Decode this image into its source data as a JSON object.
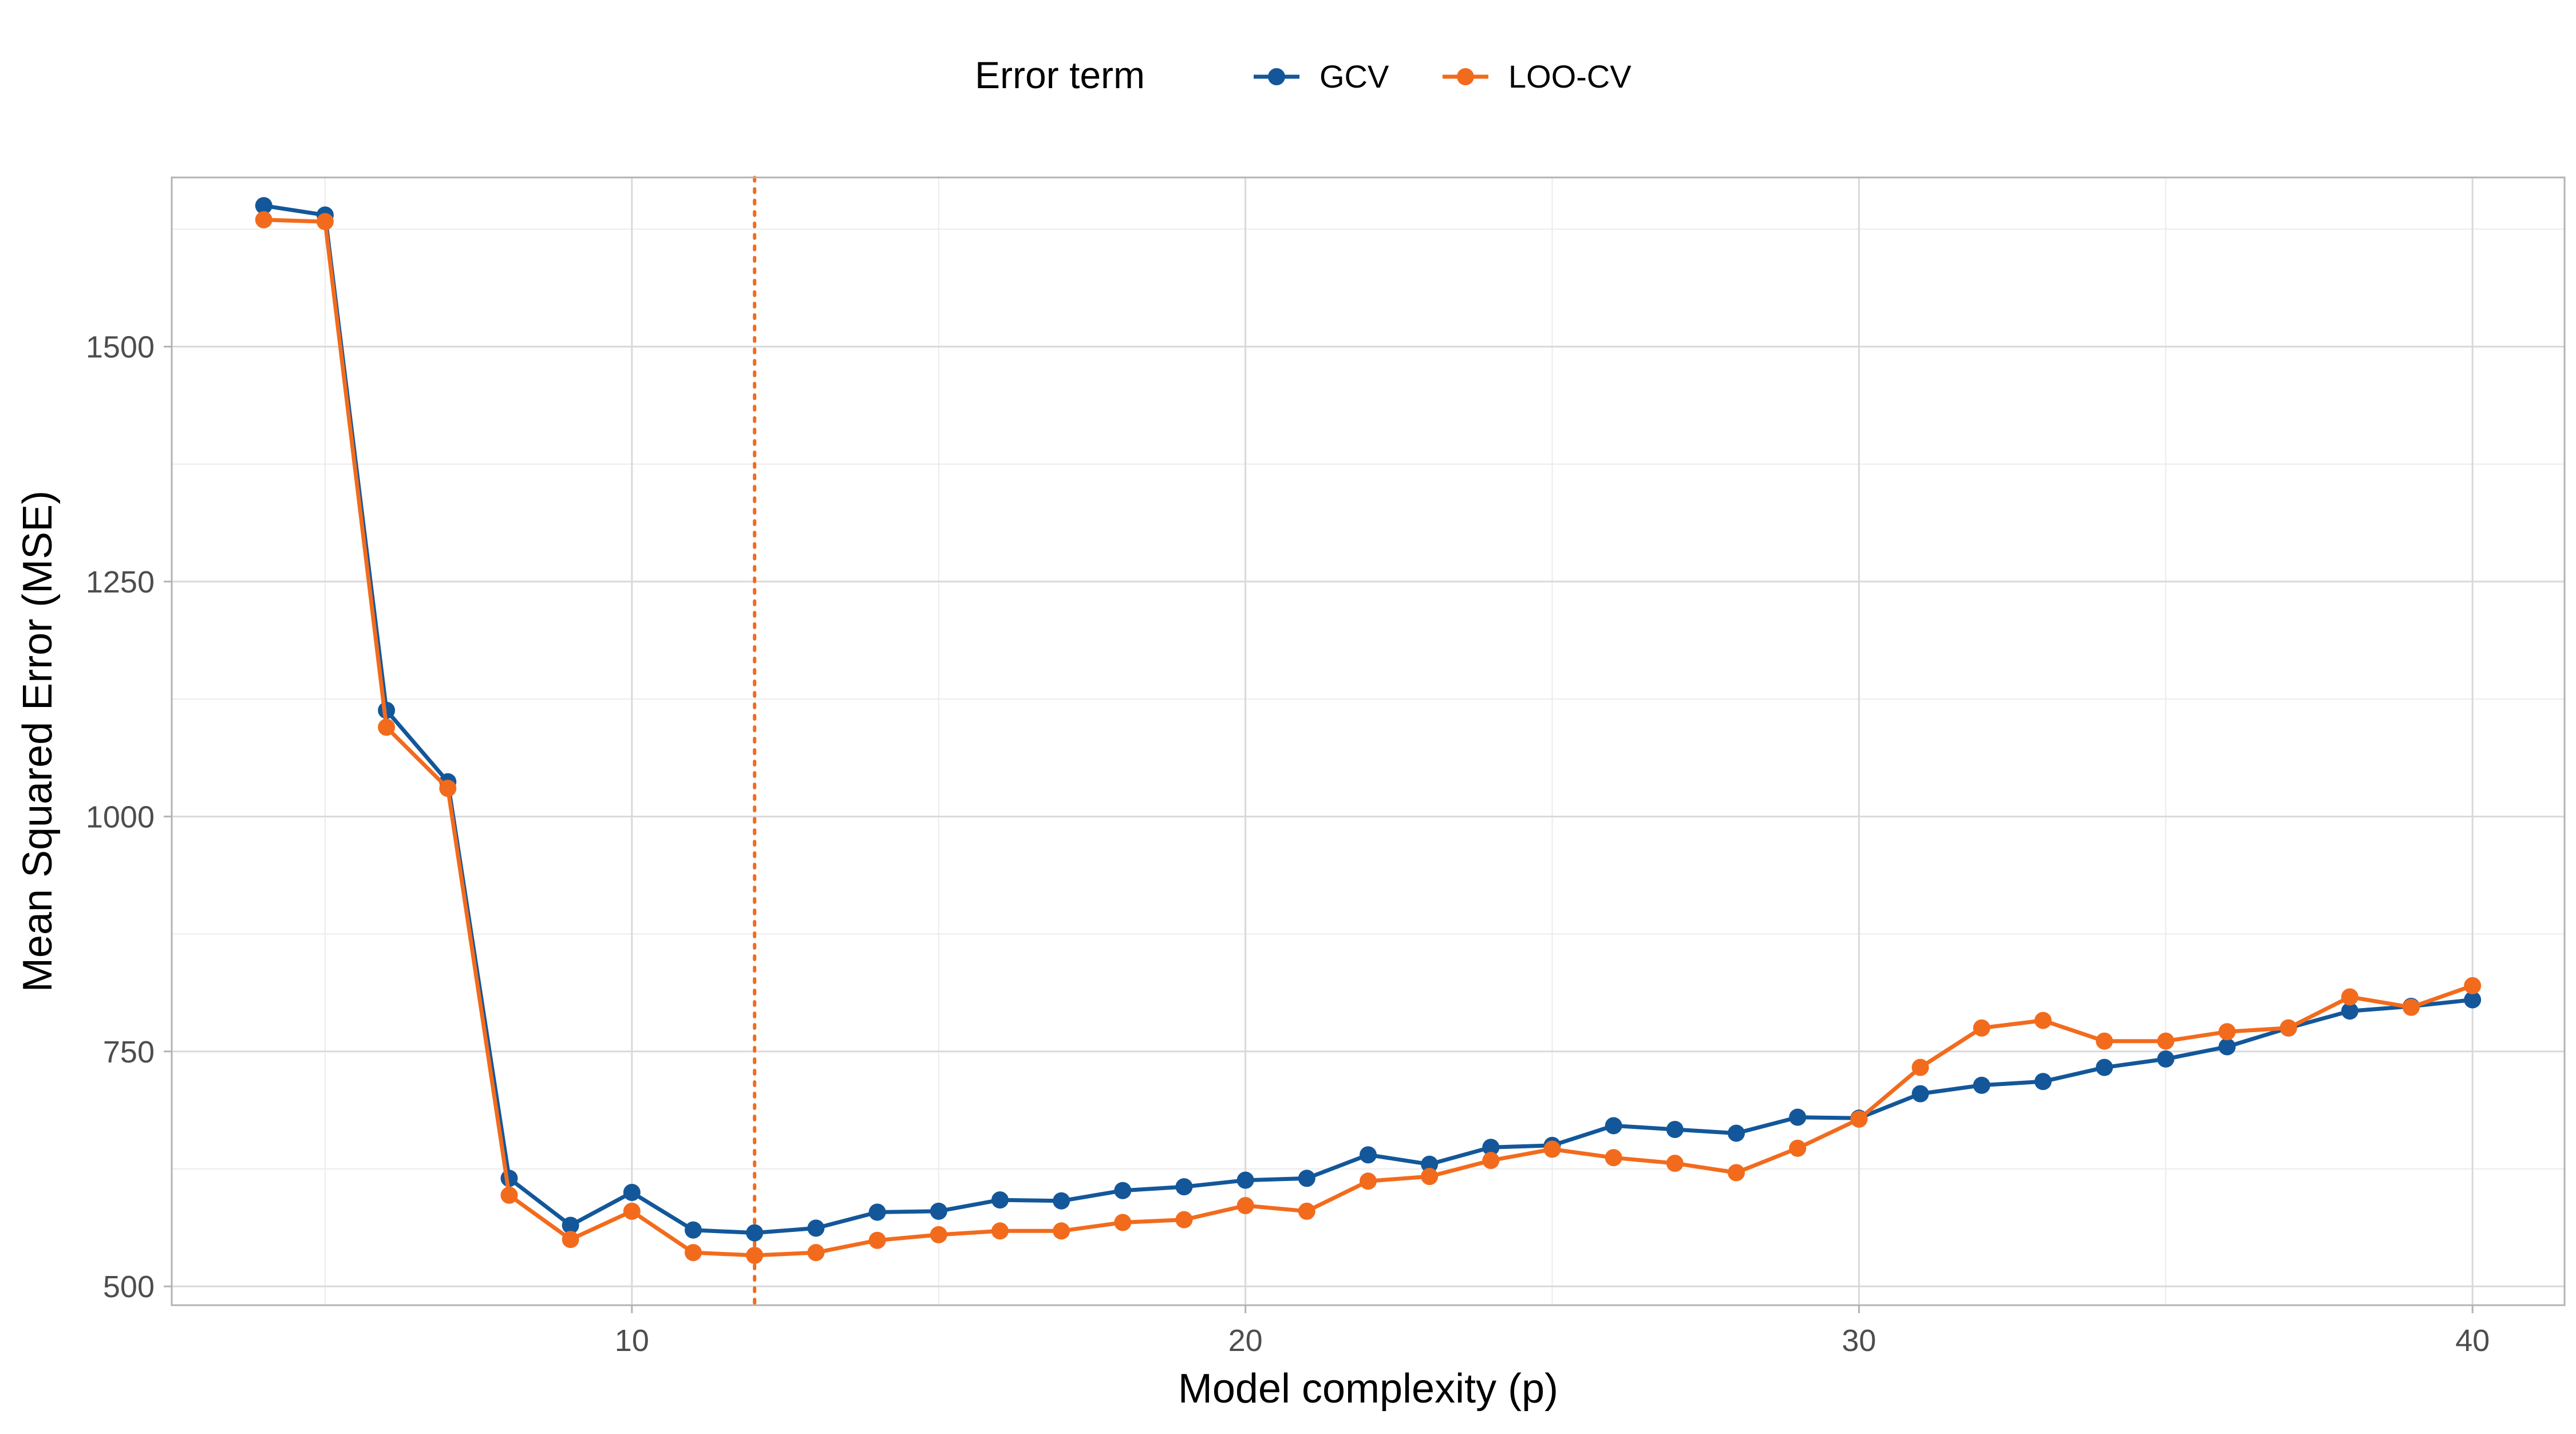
{
  "chart_data": {
    "type": "line",
    "title": "",
    "xlabel": "Model complexity (p)",
    "ylabel": "Mean Squared Error (MSE)",
    "xlim": [
      2.5,
      41.5
    ],
    "ylim": [
      480,
      1680
    ],
    "x_ticks": [
      10,
      20,
      30,
      40
    ],
    "y_ticks": [
      500,
      750,
      1000,
      1250,
      1500
    ],
    "grid": true,
    "legend": {
      "title": "Error term",
      "placement": "top"
    },
    "reference_line": {
      "axis": "x",
      "value": 12,
      "style": "dotted",
      "color": "#F26B1D"
    },
    "x": [
      4,
      5,
      6,
      7,
      8,
      9,
      10,
      11,
      12,
      13,
      14,
      15,
      16,
      17,
      18,
      19,
      20,
      21,
      22,
      23,
      24,
      25,
      26,
      27,
      28,
      29,
      30,
      31,
      32,
      33,
      34,
      35,
      36,
      37,
      38,
      39,
      40
    ],
    "series": [
      {
        "name": "GCV",
        "color": "#13579A",
        "values": [
          1650,
          1640,
          1113,
          1037,
          615,
          565,
          600,
          560,
          557,
          562,
          579,
          580,
          592,
          591,
          602,
          606,
          613,
          615,
          640,
          630,
          648,
          650,
          671,
          667,
          663,
          680,
          679,
          705,
          714,
          718,
          733,
          742,
          755,
          775,
          793,
          798,
          805
        ]
      },
      {
        "name": "LOO-CV",
        "color": "#F26B1D",
        "values": [
          1635,
          1633,
          1095,
          1030,
          597,
          550,
          580,
          536,
          533,
          536,
          549,
          555,
          559,
          559,
          568,
          571,
          586,
          580,
          612,
          617,
          634,
          646,
          637,
          631,
          621,
          647,
          678,
          733,
          775,
          783,
          761,
          761,
          771,
          775,
          808,
          797,
          820
        ]
      }
    ]
  }
}
